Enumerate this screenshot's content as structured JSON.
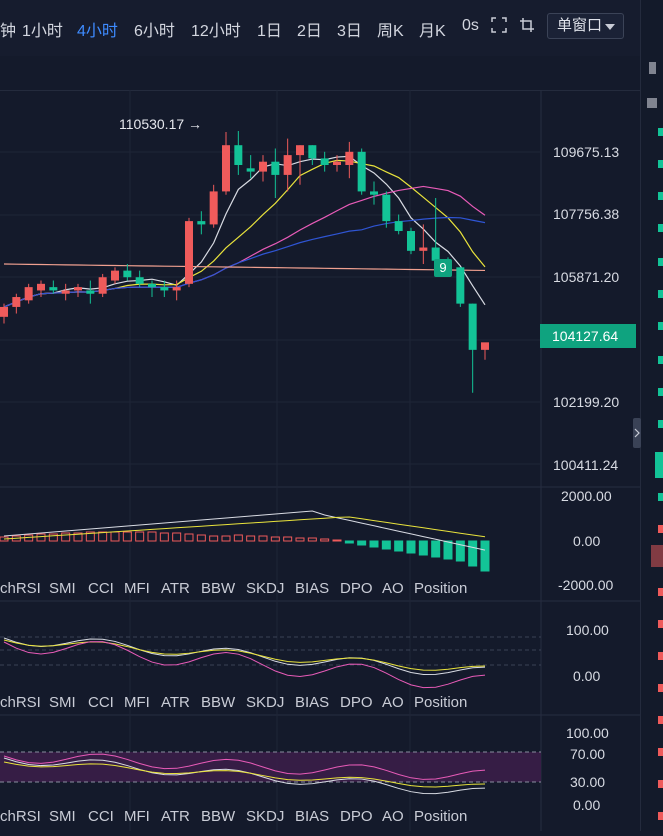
{
  "toolbar": {
    "timeframes": [
      "钟",
      "1小时",
      "4小时",
      "6小时",
      "12小时",
      "1日",
      "2日",
      "3日",
      "周K",
      "月K",
      "0s"
    ],
    "active": "4小时",
    "window_mode": "单窗口"
  },
  "price_axis": {
    "ticks": [
      "109675.13",
      "107756.38",
      "105871.20",
      "104127.64",
      "102199.20",
      "100411.24"
    ],
    "current_price": "104127.64",
    "high_marker": "110530.17 →",
    "td_count": "9"
  },
  "macd_axis": {
    "ticks": [
      "2000.00",
      "0.00",
      "-2000.00"
    ]
  },
  "osc1_axis": {
    "ticks": [
      "100.00",
      "0.00"
    ]
  },
  "osc2_axis": {
    "ticks": [
      "100.00",
      "70.00",
      "30.00",
      "0.00"
    ]
  },
  "indicator_tabs": [
    "chRSI",
    "SMI",
    "CCI",
    "MFI",
    "ATR",
    "BBW",
    "SKDJ",
    "BIAS",
    "DPO",
    "AO",
    "Position"
  ],
  "colors": {
    "up": "#ef5b5b",
    "down": "#13c397",
    "ma_white": "#d8dbe3",
    "ma_yellow": "#e9e33c",
    "ma_pink": "#e85bb8",
    "ma_blue": "#2f55d4",
    "ma_salmon": "#f0a090",
    "bg": "#141a2b"
  },
  "chart_data": {
    "type": "candlestick",
    "y_ticks": [
      109675.13,
      107756.38,
      105871.2,
      104127.64,
      102199.2,
      100411.24
    ],
    "candles": [
      {
        "o": 104900,
        "h": 105300,
        "l": 104700,
        "c": 105200
      },
      {
        "o": 105200,
        "h": 105600,
        "l": 105000,
        "c": 105500
      },
      {
        "o": 105400,
        "h": 105900,
        "l": 105300,
        "c": 105800
      },
      {
        "o": 105700,
        "h": 106000,
        "l": 105500,
        "c": 105900
      },
      {
        "o": 105800,
        "h": 106000,
        "l": 105600,
        "c": 105700
      },
      {
        "o": 105600,
        "h": 105900,
        "l": 105400,
        "c": 105700
      },
      {
        "o": 105700,
        "h": 105900,
        "l": 105500,
        "c": 105800
      },
      {
        "o": 105700,
        "h": 106000,
        "l": 105300,
        "c": 105600
      },
      {
        "o": 105600,
        "h": 106200,
        "l": 105500,
        "c": 106100
      },
      {
        "o": 106000,
        "h": 106400,
        "l": 105900,
        "c": 106300
      },
      {
        "o": 106300,
        "h": 106500,
        "l": 106000,
        "c": 106100
      },
      {
        "o": 106100,
        "h": 106300,
        "l": 105800,
        "c": 105900
      },
      {
        "o": 105900,
        "h": 106000,
        "l": 105500,
        "c": 105800
      },
      {
        "o": 105800,
        "h": 106000,
        "l": 105500,
        "c": 105700
      },
      {
        "o": 105700,
        "h": 106000,
        "l": 105400,
        "c": 105800
      },
      {
        "o": 105900,
        "h": 107900,
        "l": 105800,
        "c": 107800
      },
      {
        "o": 107800,
        "h": 108100,
        "l": 107400,
        "c": 107700
      },
      {
        "o": 107700,
        "h": 108900,
        "l": 107600,
        "c": 108700
      },
      {
        "o": 108700,
        "h": 110500,
        "l": 108600,
        "c": 110100
      },
      {
        "o": 110100,
        "h": 110530,
        "l": 109200,
        "c": 109500
      },
      {
        "o": 109400,
        "h": 109800,
        "l": 109100,
        "c": 109300
      },
      {
        "o": 109300,
        "h": 109800,
        "l": 109000,
        "c": 109600
      },
      {
        "o": 109600,
        "h": 110000,
        "l": 108500,
        "c": 109200
      },
      {
        "o": 109200,
        "h": 110300,
        "l": 108700,
        "c": 109800
      },
      {
        "o": 109800,
        "h": 110100,
        "l": 108900,
        "c": 110100
      },
      {
        "o": 110100,
        "h": 110100,
        "l": 109500,
        "c": 109700
      },
      {
        "o": 109700,
        "h": 109900,
        "l": 109300,
        "c": 109500
      },
      {
        "o": 109500,
        "h": 109800,
        "l": 109300,
        "c": 109600
      },
      {
        "o": 109500,
        "h": 110200,
        "l": 109100,
        "c": 109900
      },
      {
        "o": 109900,
        "h": 110000,
        "l": 108600,
        "c": 108700
      },
      {
        "o": 108700,
        "h": 109000,
        "l": 108300,
        "c": 108600
      },
      {
        "o": 108600,
        "h": 108700,
        "l": 107600,
        "c": 107800
      },
      {
        "o": 107800,
        "h": 108000,
        "l": 107400,
        "c": 107500
      },
      {
        "o": 107500,
        "h": 107600,
        "l": 106800,
        "c": 106900
      },
      {
        "o": 106900,
        "h": 107700,
        "l": 106500,
        "c": 107000
      },
      {
        "o": 107000,
        "h": 108500,
        "l": 106500,
        "c": 106600
      },
      {
        "o": 106600,
        "h": 106700,
        "l": 106400,
        "c": 106400
      },
      {
        "o": 106400,
        "h": 106400,
        "l": 105200,
        "c": 105300
      },
      {
        "o": 105300,
        "h": 105300,
        "l": 102600,
        "c": 103900
      },
      {
        "o": 103900,
        "h": 104100,
        "l": 103600,
        "c": 104127.64
      }
    ]
  }
}
